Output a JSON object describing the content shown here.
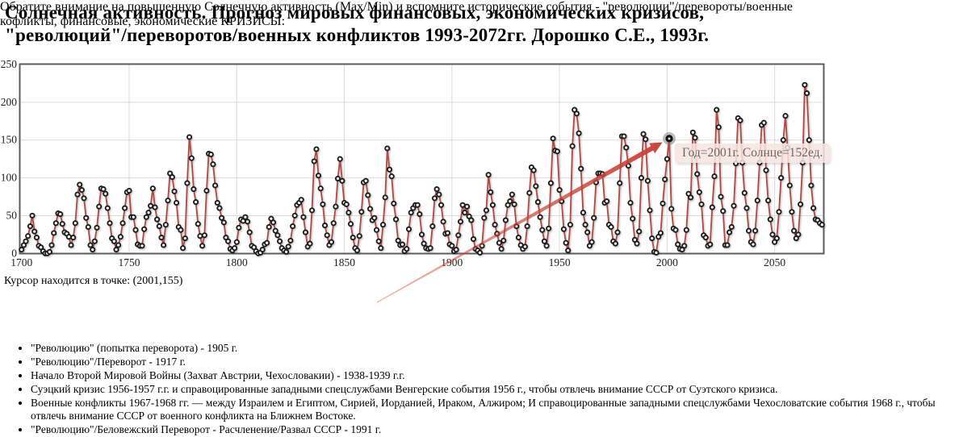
{
  "title_lines": [
    "Солнечная активность. Прогноз мировых финансовых, экономических кризисов,",
    "\"революций\"/переворотов/военных конфликтов 1993-2072гг. Дорошко С.Е., 1993г."
  ],
  "cursor_status": "Курсор находится в точке: (2001,155)",
  "lead_lines": [
    "Обратите внимание на повышенную Солнечную активность (Max/Min) и вспомните исторические события - \"революции\"/перевороты/военные",
    "кофликты, финансовые, экономические КРИЗИСЫ:"
  ],
  "events": [
    "\"Революцию\" (попытка переворота) - 1905 г.",
    "\"Революцию\"/Переворот - 1917 г.",
    "Начало Второй Мировой Войны (Захват Австрии, Чехословакии) - 1938-1939 г.г.",
    "Суэцкий кризис 1956-1957 г.г. и справоцированные западными спецслужбами Венгерские события 1956 г., чтобы отвлечь внимание СССР от Суэтского кризиса.",
    "Военные конфликты 1967-1968 гг. — между Израилем и Египтом, Сирией, Иорданией, Ираком, Алжиром; И справоцированные западными спецслужбами Чехословатские события 1968 г., чтобы отвлечь внимание СССР от военного конфликта на Ближнем Востоке.",
    "\"Революцию\"/Беловежский Переворот - Расчленение/Развал СССР - 1991 г."
  ],
  "chart_data": {
    "type": "line",
    "title": "",
    "xlabel": "",
    "ylabel": "",
    "x_start": 1700,
    "x_end": 2072,
    "xlim": [
      1700,
      2072.5
    ],
    "ylim": [
      0,
      250
    ],
    "xticks": [
      1700,
      1750,
      1800,
      1850,
      1900,
      1950,
      2000,
      2050
    ],
    "yticks": [
      0,
      50,
      100,
      150,
      200,
      250
    ],
    "grid": true,
    "legend": "none",
    "values": [
      5,
      11,
      16,
      23,
      36,
      50,
      29,
      21,
      10,
      8,
      3,
      0,
      0,
      2,
      11,
      27,
      40,
      53,
      52,
      39,
      28,
      26,
      22,
      11,
      21,
      40,
      78,
      91,
      84,
      73,
      47,
      35,
      11,
      5,
      16,
      34,
      62,
      86,
      85,
      79,
      60,
      40,
      20,
      16,
      5,
      11,
      22,
      40,
      60,
      81,
      83,
      48,
      48,
      31,
      12,
      10,
      10,
      32,
      48,
      54,
      63,
      86,
      61,
      45,
      36,
      21,
      11,
      38,
      70,
      106,
      101,
      82,
      67,
      35,
      31,
      7,
      20,
      93,
      154,
      126,
      85,
      68,
      39,
      23,
      10,
      24,
      83,
      132,
      131,
      118,
      90,
      67,
      60,
      47,
      41,
      21,
      16,
      6,
      4,
      7,
      15,
      34,
      45,
      43,
      48,
      42,
      28,
      10,
      8,
      3,
      0,
      1,
      5,
      12,
      14,
      35,
      46,
      41,
      30,
      24,
      16,
      7,
      4,
      2,
      9,
      17,
      36,
      50,
      64,
      67,
      71,
      48,
      28,
      9,
      13,
      57,
      122,
      138,
      103,
      86,
      65,
      37,
      24,
      11,
      15,
      40,
      62,
      99,
      125,
      96,
      67,
      65,
      54,
      39,
      21,
      7,
      4,
      23,
      55,
      94,
      96,
      77,
      59,
      44,
      47,
      31,
      16,
      7,
      38,
      74,
      139,
      111,
      102,
      66,
      45,
      17,
      11,
      12,
      3,
      6,
      32,
      54,
      60,
      64,
      64,
      52,
      25,
      13,
      7,
      6,
      7,
      36,
      73,
      85,
      78,
      64,
      42,
      26,
      27,
      12,
      10,
      3,
      5,
      24,
      42,
      64,
      54,
      62,
      49,
      44,
      19,
      6,
      4,
      1,
      10,
      47,
      57,
      104,
      81,
      64,
      38,
      26,
      14,
      6,
      17,
      44,
      64,
      69,
      78,
      65,
      36,
      21,
      11,
      6,
      9,
      36,
      80,
      114,
      110,
      89,
      68,
      48,
      31,
      16,
      10,
      33,
      93,
      152,
      136,
      135,
      84,
      69,
      32,
      14,
      4,
      38,
      142,
      190,
      185,
      159,
      112,
      54,
      38,
      28,
      10,
      15,
      47,
      94,
      106,
      106,
      105,
      67,
      69,
      38,
      35,
      16,
      13,
      28,
      93,
      155,
      155,
      140,
      116,
      67,
      46,
      18,
      13,
      29,
      100,
      158,
      151,
      96,
      57,
      20,
      2,
      1,
      22,
      27,
      66,
      98,
      125,
      152,
      59,
      33,
      31,
      12,
      6,
      5,
      10,
      31,
      79,
      74,
      160,
      153,
      105,
      81,
      65,
      24,
      21,
      10,
      12,
      61,
      102,
      190,
      167,
      75,
      56,
      11,
      11,
      28,
      35,
      63,
      119,
      179,
      176,
      120,
      80,
      60,
      30,
      15,
      12,
      30,
      70,
      120,
      170,
      173,
      110,
      70,
      45,
      25,
      15,
      20,
      55,
      100,
      150,
      182,
      140,
      90,
      55,
      30,
      20,
      25,
      65,
      120,
      223,
      212,
      150,
      90,
      60,
      45,
      44,
      40,
      38
    ],
    "annotation": {
      "tooltip_text": "Год=2001г. Солнце=152ед.",
      "highlight": {
        "year": 2001,
        "value": 152
      }
    },
    "colors": {
      "line": "#ae4a45",
      "marker_stroke": "#1c1c1c",
      "marker_fill": "#ffffff",
      "grid": "#dcdcdc",
      "border": "#5b5e61",
      "tick_text": "#1f1f1f",
      "arrow": "#ca4036",
      "tooltip_bg": "#f7e4e1",
      "tooltip_text_color": "#6e6660"
    }
  }
}
